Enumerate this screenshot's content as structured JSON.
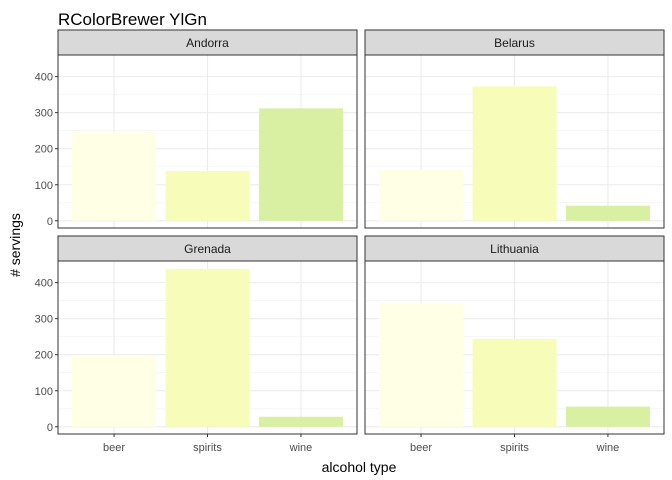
{
  "chart_data": {
    "type": "bar",
    "title": "RColorBrewer YlGn",
    "xlabel": "alcohol type",
    "ylabel": "# servings",
    "categories": [
      "beer",
      "spirits",
      "wine"
    ],
    "ylim": [
      -20,
      460
    ],
    "yticks": [
      0,
      100,
      200,
      300,
      400
    ],
    "grid": true,
    "colors": {
      "beer": "#FFFFE5",
      "spirits": "#F7FCB9",
      "wine": "#D9F0A3"
    },
    "strip_fill": "#D9D9D9",
    "panels": [
      {
        "name": "Andorra",
        "values": [
          245,
          138,
          312
        ]
      },
      {
        "name": "Belarus",
        "values": [
          142,
          373,
          42
        ]
      },
      {
        "name": "Grenada",
        "values": [
          199,
          438,
          28
        ]
      },
      {
        "name": "Lithuania",
        "values": [
          343,
          244,
          56
        ]
      }
    ]
  }
}
